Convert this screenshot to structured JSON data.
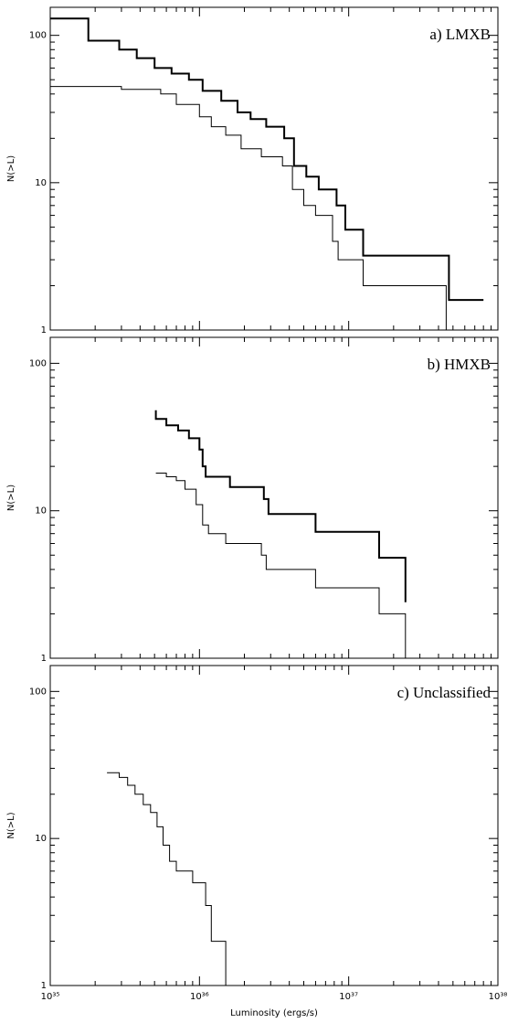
{
  "chart_data": [
    {
      "type": "line",
      "label": "a) LMXB",
      "ylabel": "N(>L)",
      "xscale": "log",
      "yscale": "log",
      "minor_ticks": true,
      "xlim": [
        1e+35,
        1e+38
      ],
      "ylim": [
        1,
        155
      ],
      "xticks": [
        1e+35,
        1e+36,
        1e+37,
        1e+38
      ],
      "yticks": [
        1,
        10,
        100
      ],
      "series": [
        {
          "color": "#000000",
          "line_width": 2,
          "x": [
            1e+35,
            1.8e+35,
            1.8e+35,
            2.9e+35,
            2.9e+35,
            3.8e+35,
            3.8e+35,
            5e+35,
            5e+35,
            6.5e+35,
            6.5e+35,
            8.5e+35,
            8.5e+35,
            1.05e+36,
            1.05e+36,
            1.4e+36,
            1.4e+36,
            1.8e+36,
            1.8e+36,
            2.2e+36,
            2.2e+36,
            2.8e+36,
            2.8e+36,
            3.7e+36,
            3.7e+36,
            4.3e+36,
            4.3e+36,
            5.2e+36,
            5.2e+36,
            6.3e+36,
            6.3e+36,
            8.3e+36,
            8.3e+36,
            9.5e+36,
            9.5e+36,
            1.25e+37,
            1.25e+37,
            4.7e+37,
            4.7e+37,
            8e+37
          ],
          "values": [
            130,
            130,
            92,
            92,
            80,
            80,
            70,
            70,
            60,
            60,
            55,
            55,
            50,
            50,
            42,
            42,
            36,
            36,
            30,
            30,
            27,
            27,
            24,
            24,
            20,
            20,
            13,
            13,
            11,
            11,
            9,
            9,
            7,
            7,
            4.8,
            4.8,
            3.2,
            3.2,
            1.6,
            1.6
          ]
        },
        {
          "color": "#000000",
          "line_width": 1,
          "x": [
            1e+35,
            3e+35,
            3e+35,
            5.5e+35,
            5.5e+35,
            7e+35,
            7e+35,
            1e+36,
            1e+36,
            1.2e+36,
            1.2e+36,
            1.5e+36,
            1.5e+36,
            1.9e+36,
            1.9e+36,
            2.6e+36,
            2.6e+36,
            3.6e+36,
            3.6e+36,
            4.2e+36,
            4.2e+36,
            5e+36,
            5e+36,
            6e+36,
            6e+36,
            7.8e+36,
            7.8e+36,
            8.5e+36,
            8.5e+36,
            1.25e+37,
            1.25e+37,
            4.5e+37,
            4.5e+37
          ],
          "values": [
            45,
            45,
            43,
            43,
            40,
            40,
            34,
            34,
            28,
            28,
            24,
            24,
            21,
            21,
            17,
            17,
            15,
            15,
            13,
            13,
            9,
            9,
            7,
            7,
            6,
            6,
            4,
            4,
            3,
            3,
            2,
            2,
            1
          ]
        }
      ]
    },
    {
      "type": "line",
      "label": "b) HMXB",
      "ylabel": "N(>L)",
      "xscale": "log",
      "yscale": "log",
      "minor_ticks": true,
      "xlim": [
        1e+35,
        1e+38
      ],
      "ylim": [
        1,
        150
      ],
      "xticks": [
        1e+35,
        1e+36,
        1e+37,
        1e+38
      ],
      "yticks": [
        1,
        10,
        100
      ],
      "series": [
        {
          "color": "#000000",
          "line_width": 2,
          "x": [
            5.1e+35,
            5.1e+35,
            6e+35,
            6e+35,
            7.2e+35,
            7.2e+35,
            8.5e+35,
            8.5e+35,
            1e+36,
            1e+36,
            1.05e+36,
            1.05e+36,
            1.1e+36,
            1.1e+36,
            1.6e+36,
            1.6e+36,
            2.7e+36,
            2.7e+36,
            2.9e+36,
            2.9e+36,
            6e+36,
            6e+36,
            1.6e+37,
            1.6e+37,
            2.4e+37,
            2.4e+37
          ],
          "values": [
            48,
            42,
            42,
            38,
            38,
            35,
            35,
            31,
            31,
            26,
            26,
            20,
            20,
            17,
            17,
            14.5,
            14.5,
            12,
            12,
            9.5,
            9.5,
            7.2,
            7.2,
            4.8,
            4.8,
            2.4
          ]
        },
        {
          "color": "#000000",
          "line_width": 1,
          "x": [
            5.1e+35,
            6e+35,
            6e+35,
            7e+35,
            7e+35,
            8e+35,
            8e+35,
            9.5e+35,
            9.5e+35,
            1.05e+36,
            1.05e+36,
            1.15e+36,
            1.15e+36,
            1.5e+36,
            1.5e+36,
            2.6e+36,
            2.6e+36,
            2.8e+36,
            2.8e+36,
            6e+36,
            6e+36,
            1.6e+37,
            1.6e+37,
            2.4e+37,
            2.4e+37
          ],
          "values": [
            18,
            18,
            17,
            17,
            16,
            16,
            14,
            14,
            11,
            11,
            8,
            8,
            7,
            7,
            6,
            6,
            5,
            5,
            4,
            4,
            3,
            3,
            2,
            2,
            1
          ]
        }
      ]
    },
    {
      "type": "line",
      "label": "c) Unclassified",
      "ylabel": "N(>L)",
      "xlabel": "Luminosity (ergs/s)",
      "xscale": "log",
      "yscale": "log",
      "minor_ticks": true,
      "xlim": [
        1e+35,
        1e+38
      ],
      "ylim": [
        1,
        150
      ],
      "xticks": [
        {
          "value": 1e+35,
          "label": "10³⁵"
        },
        {
          "value": 1e+36,
          "label": "10³⁶"
        },
        {
          "value": 1e+37,
          "label": "10³⁷"
        },
        {
          "value": 1e+38,
          "label": "10³⁸"
        }
      ],
      "yticks": [
        1,
        10,
        100
      ],
      "series": [
        {
          "color": "#000000",
          "line_width": 1,
          "x": [
            2.4e+35,
            2.9e+35,
            2.9e+35,
            3.3e+35,
            3.3e+35,
            3.7e+35,
            3.7e+35,
            4.2e+35,
            4.2e+35,
            4.7e+35,
            4.7e+35,
            5.2e+35,
            5.2e+35,
            5.7e+35,
            5.7e+35,
            6.3e+35,
            6.3e+35,
            7e+35,
            7e+35,
            9e+35,
            9e+35,
            1.1e+36,
            1.1e+36,
            1.2e+36,
            1.2e+36,
            1.5e+36,
            1.5e+36
          ],
          "values": [
            28,
            28,
            26,
            26,
            23,
            23,
            20,
            20,
            17,
            17,
            15,
            15,
            12,
            12,
            9,
            9,
            7,
            7,
            6,
            6,
            5,
            5,
            3.5,
            3.5,
            2,
            2,
            1
          ]
        }
      ]
    }
  ]
}
